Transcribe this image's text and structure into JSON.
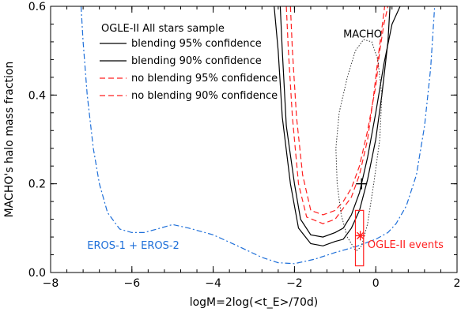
{
  "chart_data": {
    "type": "line",
    "xlabel": "logM=2log(<t_E>/70d)",
    "ylabel": "MACHO's halo mass fraction",
    "xlim": [
      -8,
      2
    ],
    "ylim": [
      0,
      0.6
    ],
    "x_ticks": [
      "−8",
      "−6",
      "−4",
      "−2",
      "0",
      "2"
    ],
    "y_ticks": [
      "0.0",
      "0.2",
      "0.4",
      "0.6"
    ],
    "grid": false,
    "legend": {
      "placement": "top-left",
      "title": "OGLE-II All stars sample",
      "entries": [
        {
          "label": "blending 95% confidence",
          "color": "#000000",
          "dash": "solid"
        },
        {
          "label": "blending 90% confidence",
          "color": "#000000",
          "dash": "solid"
        },
        {
          "label": "no blending 95% confidence",
          "color": "#ff2020",
          "dash": "dashed"
        },
        {
          "label": "no blending 90% confidence",
          "color": "#ff2020",
          "dash": "dashed"
        }
      ]
    },
    "series": [
      {
        "label": "blending 95% confidence",
        "color": "#000000",
        "dash": "solid",
        "x": [
          -2.35,
          -2.3,
          -2.2,
          -2.0,
          -1.85,
          -1.6,
          -1.3,
          -1.0,
          -0.8,
          -0.6,
          -0.4,
          -0.2,
          0.0,
          0.2,
          0.4,
          0.6
        ],
        "y": [
          0.6,
          0.5,
          0.33,
          0.2,
          0.12,
          0.085,
          0.08,
          0.09,
          0.1,
          0.13,
          0.18,
          0.26,
          0.36,
          0.47,
          0.56,
          0.6
        ]
      },
      {
        "label": "blending 90% confidence",
        "color": "#000000",
        "dash": "solid",
        "x": [
          -2.5,
          -2.4,
          -2.3,
          -2.1,
          -1.9,
          -1.6,
          -1.3,
          -1.0,
          -0.8,
          -0.6,
          -0.4,
          -0.2,
          0.0,
          0.15,
          0.3,
          0.35
        ],
        "y": [
          0.6,
          0.5,
          0.35,
          0.2,
          0.1,
          0.065,
          0.06,
          0.07,
          0.075,
          0.1,
          0.14,
          0.21,
          0.3,
          0.4,
          0.52,
          0.6
        ]
      },
      {
        "label": "no blending 95% confidence",
        "color": "#ff2020",
        "dash": "dashed",
        "x": [
          -2.1,
          -2.05,
          -1.95,
          -1.8,
          -1.6,
          -1.3,
          -1.0,
          -0.8,
          -0.6,
          -0.4,
          -0.2,
          0.0,
          0.1,
          0.2,
          0.3
        ],
        "y": [
          0.6,
          0.5,
          0.35,
          0.22,
          0.14,
          0.13,
          0.14,
          0.16,
          0.19,
          0.24,
          0.32,
          0.42,
          0.5,
          0.56,
          0.6
        ]
      },
      {
        "label": "no blending 90% confidence",
        "color": "#ff2020",
        "dash": "dashed",
        "x": [
          -2.2,
          -2.15,
          -2.05,
          -1.9,
          -1.7,
          -1.3,
          -1.0,
          -0.8,
          -0.6,
          -0.4,
          -0.2,
          -0.05,
          0.05,
          0.15,
          0.22
        ],
        "y": [
          0.6,
          0.5,
          0.35,
          0.2,
          0.125,
          0.11,
          0.12,
          0.145,
          0.17,
          0.22,
          0.3,
          0.4,
          0.48,
          0.55,
          0.6
        ]
      },
      {
        "label": "EROS-1 + EROS-2",
        "color": "#1e6fd9",
        "dash": "dashdot",
        "x": [
          -7.25,
          -7.2,
          -7.1,
          -6.95,
          -6.8,
          -6.6,
          -6.3,
          -6.0,
          -5.7,
          -5.3,
          -5.0,
          -4.6,
          -4.0,
          -3.4,
          -2.8,
          -2.4,
          -2.0,
          -1.5,
          -1.0,
          -0.5,
          0.0,
          0.3,
          0.5,
          0.75,
          1.0,
          1.2,
          1.35,
          1.45
        ],
        "y": [
          0.6,
          0.52,
          0.4,
          0.28,
          0.2,
          0.135,
          0.098,
          0.09,
          0.09,
          0.1,
          0.108,
          0.1,
          0.085,
          0.06,
          0.034,
          0.022,
          0.02,
          0.03,
          0.045,
          0.058,
          0.075,
          0.09,
          0.11,
          0.15,
          0.22,
          0.33,
          0.46,
          0.6
        ]
      }
    ],
    "macho_contour": {
      "label": "MACHO",
      "color": "#333333",
      "x": [
        -0.45,
        -0.5,
        -0.7,
        -0.85,
        -0.95,
        -0.98,
        -0.9,
        -0.7,
        -0.5,
        -0.3,
        -0.1,
        0.05,
        0.15,
        0.1,
        -0.05,
        -0.2,
        -0.35,
        -0.45
      ],
      "y": [
        0.05,
        0.05,
        0.08,
        0.13,
        0.2,
        0.28,
        0.36,
        0.44,
        0.5,
        0.525,
        0.52,
        0.48,
        0.4,
        0.3,
        0.2,
        0.11,
        0.06,
        0.05
      ]
    },
    "macho_point": {
      "x": -0.35,
      "y": 0.2,
      "color": "#000000"
    },
    "ogle_events": {
      "label": "OGLE-II events",
      "color": "#ff2020",
      "point": {
        "x": -0.38,
        "y": 0.083
      },
      "box_x": [
        -0.5,
        -0.3
      ],
      "box_y": [
        0.015,
        0.14
      ]
    },
    "annotations": [
      {
        "text": "MACHO",
        "color": "#000000",
        "x": -0.8,
        "y": 0.53
      },
      {
        "text": "EROS-1 + EROS-2",
        "color": "#1e6fd9",
        "x": -7.1,
        "y": 0.053
      },
      {
        "text": "OGLE-II events",
        "color": "#ff2020",
        "x": -0.2,
        "y": 0.055
      }
    ]
  }
}
